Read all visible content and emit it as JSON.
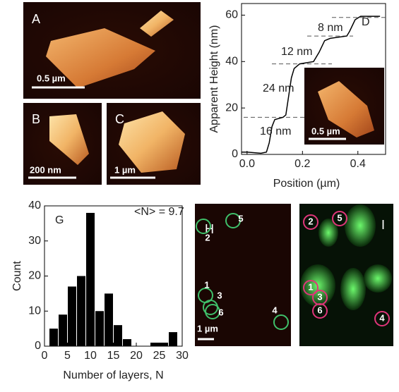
{
  "panels": [
    {
      "letter": "A",
      "scale_bar": "0.5 µm"
    },
    {
      "letter": "B",
      "scale_bar": "200 nm"
    },
    {
      "letter": "C",
      "scale_bar": "1 µm"
    },
    {
      "scale_bar": "0.5 µm"
    },
    {
      "letter": "H",
      "scale_bar": "1 µm",
      "markers": [
        "5",
        "2",
        "1",
        "3",
        "6",
        "4"
      ]
    },
    {
      "letter": "I",
      "markers": [
        "2",
        "5",
        "1",
        "3",
        "6",
        "4"
      ]
    }
  ],
  "chart_data": [
    {
      "type": "line",
      "panel": "D",
      "x_label": "Position (µm)",
      "y_label": "Apparent Height (nm)",
      "x": [
        -0.02,
        0.0,
        0.05,
        0.07,
        0.08,
        0.09,
        0.1,
        0.13,
        0.14,
        0.15,
        0.16,
        0.17,
        0.19,
        0.24,
        0.26,
        0.28,
        0.3,
        0.36,
        0.37,
        0.39,
        0.41,
        0.48
      ],
      "values": [
        1,
        1,
        0.5,
        1,
        5,
        12,
        15,
        16,
        17,
        25,
        33,
        37,
        39,
        40,
        44,
        49,
        50,
        51,
        53,
        58,
        59.5,
        59.5
      ],
      "color": "#000000",
      "reference_lines": [
        16,
        39,
        51,
        59
      ],
      "annotations": [
        "8 nm",
        "12 nm",
        "24 nm",
        "16 nm"
      ],
      "xlim": [
        -0.02,
        0.5
      ],
      "xticks": [
        {
          "value": 0,
          "label": "0.0"
        },
        0.2,
        0.4
      ],
      "ylim": [
        0,
        65
      ],
      "yticks": [
        0,
        20,
        40,
        60
      ]
    },
    {
      "type": "histogram",
      "panel": "G",
      "x_label": "Number of layers, N",
      "y_label": "Count",
      "annotation": "<N> = 9.7",
      "bins": [
        1,
        3,
        5,
        7,
        9,
        11,
        13,
        15,
        17,
        19,
        21,
        23,
        25,
        27,
        29
      ],
      "values": [
        5,
        9,
        17,
        20,
        38,
        10,
        15,
        6,
        2,
        0,
        0,
        1,
        1,
        4
      ],
      "color": "#000000",
      "xlim": [
        0,
        30
      ],
      "xticks": [
        0,
        5,
        10,
        15,
        20,
        25,
        30
      ],
      "ylim": [
        0,
        40
      ],
      "yticks": [
        0,
        10,
        20,
        30,
        40
      ]
    }
  ]
}
